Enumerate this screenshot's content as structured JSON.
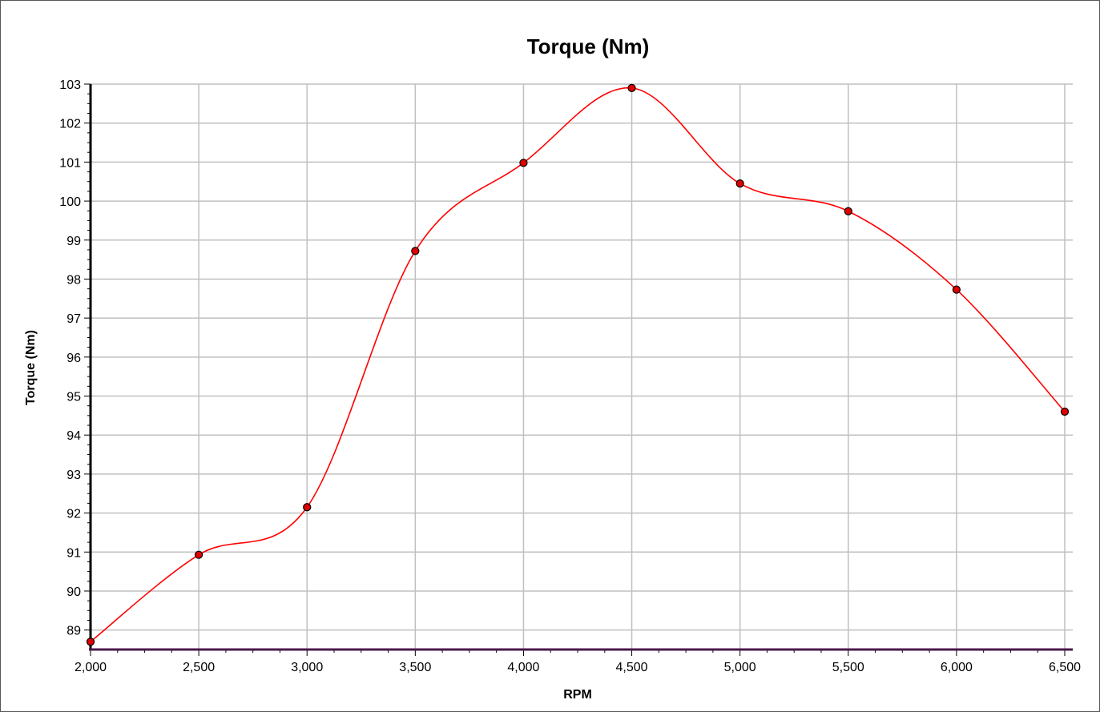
{
  "chart_data": {
    "type": "line",
    "title": "Torque (Nm)",
    "xlabel": "RPM",
    "ylabel": "Torque (Nm)",
    "x": [
      2000,
      2500,
      3000,
      3500,
      4000,
      4500,
      5000,
      5500,
      6000,
      6500
    ],
    "series": [
      {
        "values": [
          88.7,
          90.93,
          92.15,
          98.72,
          100.98,
          102.9,
          100.45,
          99.74,
          97.73,
          94.6
        ],
        "color": "#ff0000",
        "marker_color": "#e00000"
      }
    ],
    "xlim": [
      2000,
      6500
    ],
    "ylim": [
      88.5,
      103
    ],
    "x_ticks": [
      2000,
      2500,
      3000,
      3500,
      4000,
      4500,
      5000,
      5500,
      6000,
      6500
    ],
    "x_tick_labels": [
      "2,000",
      "2,500",
      "3,000",
      "3,500",
      "4,000",
      "4,500",
      "5,000",
      "5,500",
      "6,000",
      "6,500"
    ],
    "y_ticks": [
      89,
      90,
      91,
      92,
      93,
      94,
      95,
      96,
      97,
      98,
      99,
      100,
      101,
      102,
      103
    ],
    "y_tick_labels": [
      "89",
      "90",
      "91",
      "92",
      "93",
      "94",
      "95",
      "96",
      "97",
      "98",
      "99",
      "100",
      "101",
      "102",
      "103"
    ],
    "grid": true,
    "grid_color": "#c0c0c0",
    "x_axis_color": "#4a1a4a",
    "y_axis_color": "#000000",
    "curve": "smooth"
  }
}
